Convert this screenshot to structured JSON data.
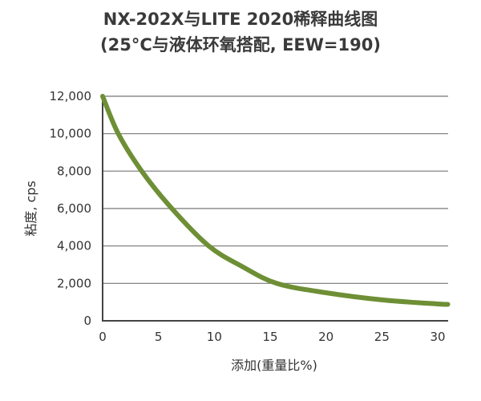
{
  "chart_data": {
    "type": "line",
    "title": "NX-202X与LITE 2020稀释曲线图",
    "subtitle": "(25°C与液体环氧搭配, EEW=190)",
    "xlabel": "添加(重量比%)",
    "ylabel": "粘度, cps",
    "xlim": [
      0,
      30.9
    ],
    "ylim": [
      0,
      12000
    ],
    "xticks": [
      "0",
      "5",
      "10",
      "15",
      "20",
      "25",
      "30"
    ],
    "yticks": [
      "0",
      "2,000",
      "4,000",
      "6,000",
      "8,000",
      "10,000",
      "12,000"
    ],
    "grid": "horizontal",
    "line_color": "#6e8f35",
    "series": [
      {
        "x": [
          0,
          1.4,
          3.5,
          6.2,
          9.5,
          12.5,
          15.6,
          20,
          25,
          30,
          30.9
        ],
        "y": [
          12000,
          10000,
          8000,
          6000,
          4000,
          2900,
          2000,
          1500,
          1120,
          900,
          880
        ]
      }
    ]
  }
}
